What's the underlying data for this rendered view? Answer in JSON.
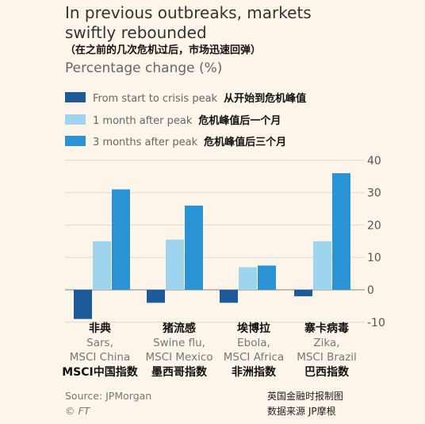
{
  "chart_data": {
    "type": "bar",
    "title": "In previous outbreaks, markets swiftly rebounded",
    "title_cn": "（在之前的几次危机过后，市场迅速回弹）",
    "ylabel": "Percentage change (%)",
    "ylim": [
      -10,
      40
    ],
    "yticks": [
      -10,
      0,
      10,
      20,
      30,
      40
    ],
    "legend_placement": "top-left",
    "grid": "horizontal",
    "categories": [
      {
        "disease": "Sars,",
        "index": "MSCI China",
        "disease_cn": "非典",
        "index_cn": "MSCI中国指数"
      },
      {
        "disease": "Swine flu,",
        "index": "MSCI Mexico",
        "disease_cn": "猪流感",
        "index_cn": "墨西哥指数"
      },
      {
        "disease": "Ebola,",
        "index": "MSCI Africa",
        "disease_cn": "埃博拉",
        "index_cn": "非洲指数"
      },
      {
        "disease": "Zika,",
        "index": "MSCI Brazil",
        "disease_cn": "寨卡病毒",
        "index_cn": "巴西指数"
      }
    ],
    "series": [
      {
        "name": "From start to crisis peak",
        "name_cn": "从开始到危机峰值",
        "color": "#1c5a99",
        "values": [
          -9,
          -4,
          -4,
          -2
        ]
      },
      {
        "name": "1 month after peak",
        "name_cn": "危机峰值后一个月",
        "color": "#9fd4ef",
        "values": [
          15,
          15.5,
          7,
          15
        ]
      },
      {
        "name": "3 months after peak",
        "name_cn": "危机峰值后三个月",
        "color": "#2a93d4",
        "values": [
          31,
          26,
          7.5,
          36
        ]
      }
    ],
    "source": "Source: JPMorgan",
    "credit": "© FT",
    "credit_cn_1": "英国金融时报制图",
    "credit_cn_2": "数据来源 JP摩根"
  }
}
